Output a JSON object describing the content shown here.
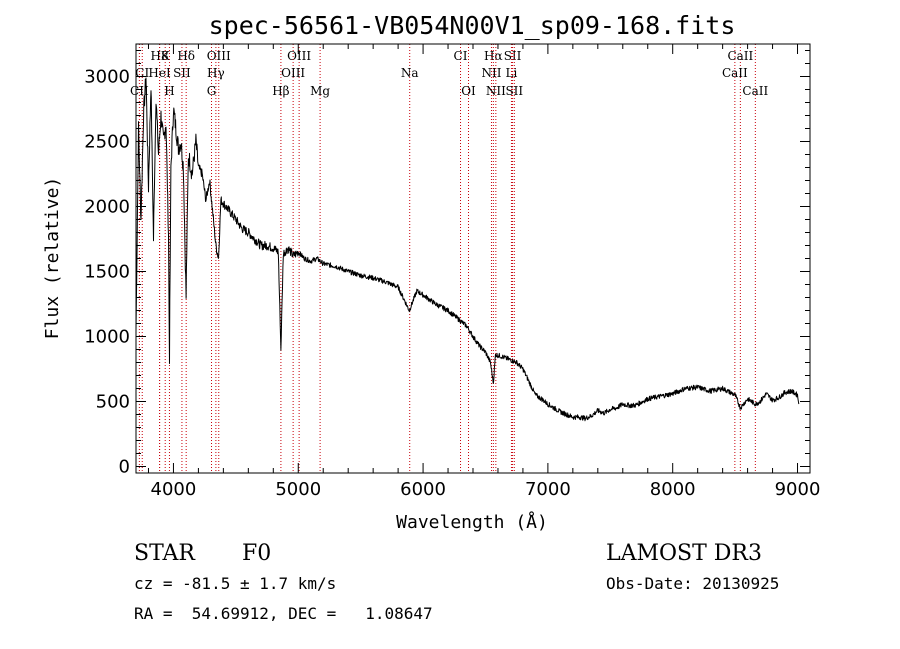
{
  "chart_data": {
    "type": "line",
    "title": "spec-56561-VB054N00V1_sp09-168.fits",
    "xlabel": "Wavelength (Å)",
    "ylabel": "Flux (relative)",
    "xlim": [
      3700,
      9100
    ],
    "ylim": [
      -50,
      3250
    ],
    "x_ticks": [
      4000,
      5000,
      6000,
      7000,
      8000,
      9000
    ],
    "x_tick_labels": [
      "4000",
      "5000",
      "6000",
      "7000",
      "8000",
      "9000"
    ],
    "y_ticks": [
      0,
      500,
      1000,
      1500,
      2000,
      2500,
      3000
    ],
    "y_tick_labels": [
      "0",
      "500",
      "1000",
      "1500",
      "2000",
      "2500",
      "3000"
    ],
    "series": [
      {
        "name": "flux",
        "color": "#000000",
        "x": [
          3700,
          3720,
          3740,
          3760,
          3780,
          3800,
          3820,
          3840,
          3860,
          3880,
          3900,
          3920,
          3940,
          3960,
          3968,
          3980,
          4000,
          4020,
          4040,
          4060,
          4080,
          4101,
          4120,
          4150,
          4180,
          4200,
          4230,
          4260,
          4290,
          4310,
          4340,
          4361,
          4380,
          4420,
          4460,
          4500,
          4550,
          4600,
          4650,
          4700,
          4750,
          4800,
          4840,
          4861,
          4880,
          4920,
          4960,
          5000,
          5050,
          5100,
          5150,
          5200,
          5300,
          5400,
          5500,
          5600,
          5700,
          5800,
          5890,
          5950,
          6000,
          6100,
          6200,
          6300,
          6350,
          6400,
          6450,
          6500,
          6540,
          6563,
          6580,
          6620,
          6700,
          6750,
          6800,
          6850,
          6900,
          6950,
          7000,
          7050,
          7100,
          7150,
          7200,
          7250,
          7300,
          7350,
          7400,
          7450,
          7500,
          7550,
          7600,
          7650,
          7700,
          7800,
          7900,
          8000,
          8100,
          8200,
          8300,
          8400,
          8500,
          8542,
          8600,
          8662,
          8700,
          8750,
          8800,
          8850,
          8900,
          8950,
          9000,
          9010
        ],
        "y": [
          1050,
          2600,
          1900,
          2700,
          3000,
          2150,
          2950,
          1750,
          2850,
          2400,
          2700,
          2500,
          2650,
          1800,
          850,
          2300,
          2750,
          2600,
          2450,
          2500,
          2300,
          1300,
          2400,
          2250,
          2500,
          2300,
          2250,
          2050,
          2200,
          2000,
          1700,
          1600,
          2050,
          2000,
          1950,
          1900,
          1830,
          1800,
          1750,
          1700,
          1700,
          1680,
          1650,
          900,
          1640,
          1680,
          1620,
          1650,
          1600,
          1580,
          1600,
          1560,
          1540,
          1500,
          1470,
          1450,
          1420,
          1380,
          1200,
          1350,
          1320,
          1250,
          1200,
          1120,
          1080,
          1000,
          930,
          880,
          800,
          640,
          860,
          850,
          820,
          800,
          750,
          650,
          550,
          520,
          480,
          450,
          420,
          400,
          380,
          380,
          370,
          390,
          430,
          410,
          440,
          450,
          480,
          470,
          470,
          520,
          540,
          560,
          600,
          610,
          580,
          600,
          550,
          450,
          520,
          480,
          500,
          560,
          510,
          530,
          570,
          580,
          550,
          480
        ]
      }
    ],
    "line_markers": [
      {
        "name": "H8",
        "x": 3889,
        "label": "H8",
        "row": 0
      },
      {
        "name": "K",
        "x": 3934,
        "label": "K",
        "row": 0
      },
      {
        "name": "H-delta",
        "x": 4102,
        "label": "Hδ",
        "row": 0
      },
      {
        "name": "OIII-4363",
        "x": 4363,
        "label": "OIII",
        "row": 0
      },
      {
        "name": "OIII-5007",
        "x": 5007,
        "label": "OIII",
        "row": 0
      },
      {
        "name": "CI-6300",
        "x": 6300,
        "label": "CI",
        "row": 0
      },
      {
        "name": "H-alpha",
        "x": 6563,
        "label": "Hα",
        "row": 0
      },
      {
        "name": "SII-6717",
        "x": 6717,
        "label": "SII",
        "row": 0
      },
      {
        "name": "CaII-8542",
        "x": 8542,
        "label": "CaII",
        "row": 0
      },
      {
        "name": "CI-3750",
        "x": 3750,
        "label": "CI",
        "row": 1
      },
      {
        "name": "HeI",
        "x": 3889,
        "label": "HeI",
        "row": 1
      },
      {
        "name": "SII-4068",
        "x": 4068,
        "label": "SII",
        "row": 1
      },
      {
        "name": "H-gamma",
        "x": 4340,
        "label": "Hγ",
        "row": 1
      },
      {
        "name": "OIII-4959",
        "x": 4959,
        "label": "OIII",
        "row": 1
      },
      {
        "name": "Na",
        "x": 5893,
        "label": "Na",
        "row": 1
      },
      {
        "name": "NII-6548",
        "x": 6548,
        "label": "NII",
        "row": 1
      },
      {
        "name": "Li",
        "x": 6708,
        "label": "Li",
        "row": 1
      },
      {
        "name": "CaII-8498",
        "x": 8498,
        "label": "CaII",
        "row": 1
      },
      {
        "name": "CII-3727",
        "x": 3727,
        "label": "CII",
        "row": 2
      },
      {
        "name": "H",
        "x": 3968,
        "label": "H",
        "row": 2
      },
      {
        "name": "G",
        "x": 4305,
        "label": "G",
        "row": 2
      },
      {
        "name": "H-beta",
        "x": 4861,
        "label": "Hβ",
        "row": 2
      },
      {
        "name": "Mg",
        "x": 5175,
        "label": "Mg",
        "row": 2
      },
      {
        "name": "OI-6364",
        "x": 6364,
        "label": "OI",
        "row": 2
      },
      {
        "name": "NII-6583",
        "x": 6583,
        "label": "NII",
        "row": 2
      },
      {
        "name": "SII-6731",
        "x": 6731,
        "label": "SII",
        "row": 2
      },
      {
        "name": "CaII-8662",
        "x": 8662,
        "label": "CaII",
        "row": 2
      }
    ],
    "annotations": {
      "object_class": "STAR",
      "subclass": "F0",
      "survey": "LAMOST DR3",
      "redshift": "cz = -81.5 ± 1.7 km/s",
      "obs_date": "Obs-Date: 20130925",
      "coords": "RA =  54.69912, DEC =   1.08647"
    },
    "colors": {
      "line": "#000000",
      "marker": "#c8000a",
      "axis": "#000000"
    }
  }
}
